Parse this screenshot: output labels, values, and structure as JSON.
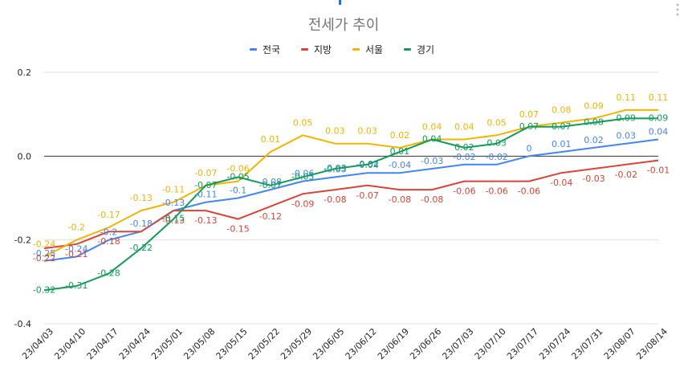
{
  "chart_data": {
    "type": "line",
    "title": "전세가 추이",
    "xlabel": "",
    "ylabel": "",
    "ylim": [
      -0.4,
      0.2
    ],
    "yticks": [
      "0.2",
      "0.0",
      "-0.2",
      "-0.4"
    ],
    "ytick_values": [
      0.2,
      0.0,
      -0.2,
      -0.4
    ],
    "legend_position": "top",
    "categories": [
      "23/04/03",
      "23/04/10",
      "23/04/17",
      "23/04/24",
      "23/05/01",
      "23/05/08",
      "23/05/15",
      "23/05/22",
      "23/05/29",
      "23/06/05",
      "23/06/12",
      "23/06/19",
      "23/06/26",
      "23/07/03",
      "23/07/10",
      "23/07/17",
      "23/07/24",
      "23/07/31",
      "23/08/07",
      "23/08/14"
    ],
    "series": [
      {
        "name": "전국",
        "color": "#4285f4",
        "values": [
          -0.25,
          -0.24,
          -0.2,
          -0.18,
          -0.13,
          -0.11,
          -0.1,
          -0.08,
          -0.06,
          -0.05,
          -0.04,
          -0.04,
          -0.03,
          -0.02,
          -0.02,
          0,
          0.01,
          0.02,
          0.03,
          0.04
        ],
        "labels": [
          "-0.25",
          "-0.24",
          "-0.2",
          "-0.18",
          "-0.13",
          "-0.11",
          "-0.1",
          "-0.08",
          "-0.06",
          "-0.05",
          "-0.04",
          "-0.04",
          "-0.03",
          "-0.02",
          "-0.02",
          "0",
          "0.01",
          "0.02",
          "0.03",
          "0.04"
        ]
      },
      {
        "name": "지방",
        "color": "#db4437",
        "values": [
          -0.22,
          -0.21,
          -0.18,
          -0.18,
          -0.13,
          -0.13,
          -0.15,
          -0.12,
          -0.09,
          -0.08,
          -0.07,
          -0.08,
          -0.08,
          -0.06,
          -0.06,
          -0.06,
          -0.04,
          -0.03,
          -0.02,
          -0.01
        ],
        "labels": [
          "-0.22",
          "-0.21",
          "-0.18",
          "",
          "-0.13",
          "-0.13",
          "-0.15",
          "-0.12",
          "-0.09",
          "-0.08",
          "-0.07",
          "-0.08",
          "-0.08",
          "-0.06",
          "-0.06",
          "-0.06",
          "-0.04",
          "-0.03",
          "-0.02",
          "-0.01"
        ]
      },
      {
        "name": "서울",
        "color": "#f4b400",
        "values": [
          -0.24,
          -0.2,
          -0.17,
          -0.13,
          -0.11,
          -0.07,
          -0.06,
          0.01,
          0.05,
          0.03,
          0.03,
          0.02,
          0.04,
          0.04,
          0.05,
          0.07,
          0.08,
          0.09,
          0.11,
          0.11
        ],
        "labels": [
          "-0.24",
          "-0.2",
          "-0.17",
          "-0.13",
          "-0.11",
          "-0.07",
          "-0.06",
          "0.01",
          "0.05",
          "0.03",
          "0.03",
          "0.02",
          "0.04",
          "0.04",
          "0.05",
          "0.07",
          "0.08",
          "0.09",
          "0.11",
          "0.11"
        ]
      },
      {
        "name": "경기",
        "color": "#0f9d58",
        "values": [
          -0.32,
          -0.31,
          -0.28,
          -0.22,
          -0.15,
          -0.07,
          -0.05,
          -0.07,
          -0.05,
          -0.03,
          -0.02,
          0.01,
          0.04,
          0.02,
          0.03,
          0.07,
          0.07,
          0.08,
          0.09,
          0.09
        ],
        "labels": [
          "-0.32",
          "-0.31",
          "-0.28",
          "-0.22",
          "-0.15",
          "-0.07",
          "-0.05",
          "-0.07",
          "-0.05",
          "-0.03",
          "-0.02",
          "0.01",
          "0.04",
          "0.02",
          "0.03",
          "0.07",
          "0.07",
          "0.08",
          "0.09",
          "0.09"
        ]
      }
    ]
  }
}
